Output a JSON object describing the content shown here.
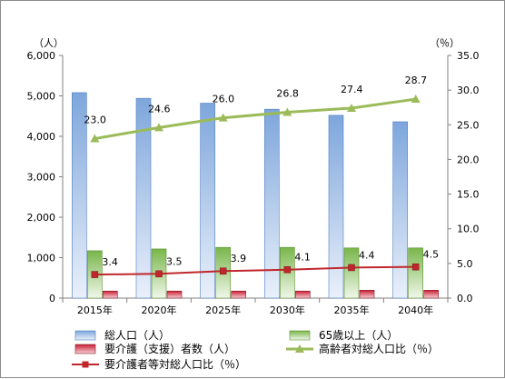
{
  "chart_data": {
    "type": "bar",
    "categories": [
      "2015年",
      "2020年",
      "2025年",
      "2030年",
      "2035年",
      "2040年"
    ],
    "left_axis": {
      "unit_label": "（人）",
      "ticks": [
        "0",
        "1,000",
        "2,000",
        "3,000",
        "4,000",
        "5,000",
        "6,000"
      ],
      "ylim": [
        0,
        6000
      ]
    },
    "right_axis": {
      "unit_label": "（％）",
      "ticks": [
        "0.0",
        "5.0",
        "10.0",
        "15.0",
        "20.0",
        "25.0",
        "30.0",
        "35.0"
      ],
      "ylim": [
        0,
        35
      ]
    },
    "series": [
      {
        "name": "総人口（人）",
        "type": "bar",
        "axis": "left",
        "color": "#8fb4e3",
        "values": [
          5080,
          4940,
          4820,
          4670,
          4520,
          4360
        ]
      },
      {
        "name": "65歳以上（人）",
        "type": "bar",
        "axis": "left",
        "color": "#92c36a",
        "values": [
          1170,
          1215,
          1255,
          1255,
          1240,
          1240
        ]
      },
      {
        "name": "要介護（支援）者数（人）",
        "type": "bar",
        "axis": "left",
        "color": "#d9354a",
        "values": [
          175,
          175,
          175,
          175,
          195,
          195
        ]
      },
      {
        "name": "高齢者対総人口比（％）",
        "type": "line",
        "axis": "right",
        "color": "#9bbb59",
        "marker": "triangle",
        "values": [
          23.0,
          24.6,
          26.0,
          26.8,
          27.4,
          28.7
        ],
        "labels": [
          "23.0",
          "24.6",
          "26.0",
          "26.8",
          "27.4",
          "28.7"
        ]
      },
      {
        "name": "要介護者等対総人口比（％）",
        "type": "line",
        "axis": "right",
        "color": "#c0272d",
        "marker": "square",
        "values": [
          3.4,
          3.5,
          3.9,
          4.1,
          4.4,
          4.5
        ],
        "labels": [
          "3.4",
          "3.5",
          "3.9",
          "4.1",
          "4.4",
          "4.5"
        ]
      }
    ],
    "grid": false,
    "legend_position": "bottom"
  }
}
